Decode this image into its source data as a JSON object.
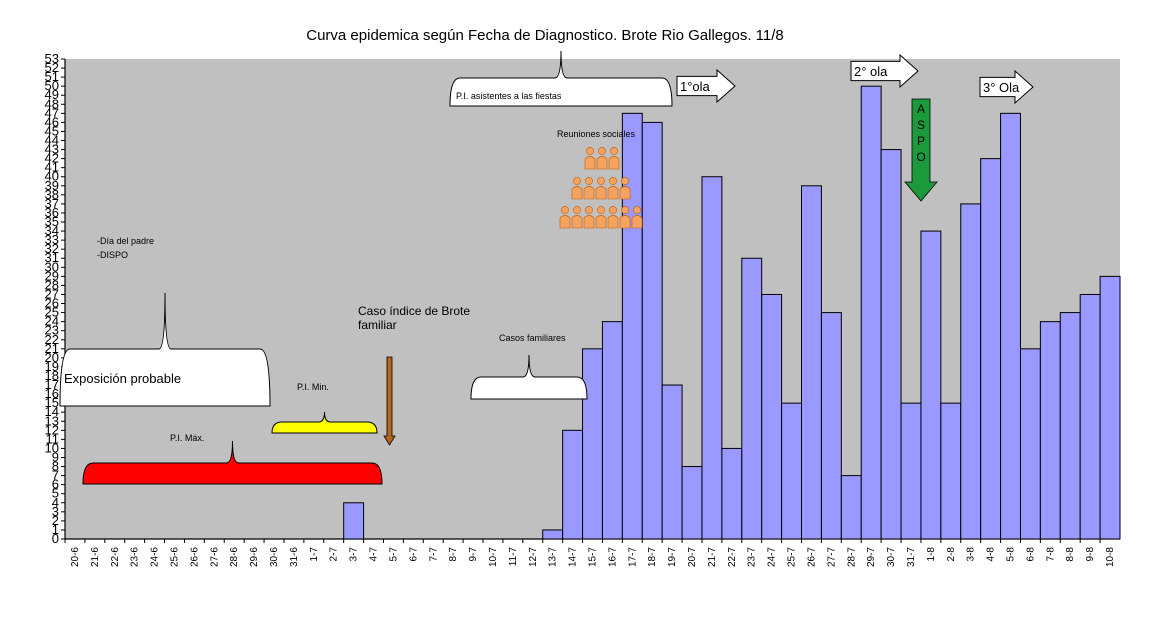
{
  "chart_data": {
    "type": "bar",
    "title": "Curva epidemica según Fecha de Diagnostico. Brote Rio Gallegos. 11/8",
    "xlabel": "",
    "ylabel": "",
    "ylim": [
      0,
      53
    ],
    "yticks": [
      0,
      1,
      2,
      3,
      4,
      5,
      6,
      7,
      8,
      9,
      10,
      11,
      12,
      13,
      14,
      15,
      16,
      17,
      18,
      19,
      20,
      21,
      22,
      23,
      24,
      25,
      26,
      27,
      28,
      29,
      30,
      31,
      32,
      33,
      34,
      35,
      36,
      37,
      38,
      39,
      40,
      41,
      42,
      43,
      44,
      45,
      46,
      47,
      48,
      49,
      50,
      51,
      52,
      53
    ],
    "grid": false,
    "categories": [
      "20-6",
      "21-6",
      "22-6",
      "23-6",
      "24-6",
      "25-6",
      "26-6",
      "27-6",
      "28-6",
      "29-6",
      "30-6",
      "31-6",
      "1-7",
      "2-7",
      "3-7",
      "4-7",
      "5-7",
      "6-7",
      "7-7",
      "8-7",
      "9-7",
      "10-7",
      "11-7",
      "12-7",
      "13-7",
      "14-7",
      "15-7",
      "16-7",
      "17-7",
      "18-7",
      "19-7",
      "20-7",
      "21-7",
      "22-7",
      "23-7",
      "24-7",
      "25-7",
      "26-7",
      "27-7",
      "28-7",
      "29-7",
      "30-7",
      "31-7",
      "1-8",
      "2-8",
      "3-8",
      "4-8",
      "5-8",
      "6-8",
      "7-8",
      "8-8",
      "9-8",
      "10-8"
    ],
    "values": [
      0,
      0,
      0,
      0,
      0,
      0,
      0,
      0,
      0,
      0,
      0,
      0,
      0,
      0,
      4,
      0,
      0,
      0,
      0,
      0,
      0,
      0,
      0,
      0,
      1,
      12,
      21,
      24,
      47,
      46,
      17,
      8,
      40,
      10,
      31,
      27,
      15,
      39,
      25,
      7,
      50,
      43,
      15,
      34,
      15,
      37,
      42,
      47,
      21,
      24,
      25,
      27,
      29
    ],
    "colors": {
      "bar": "#9999ff",
      "plot_bg": "#c0c0c0",
      "red": "#ff0000",
      "yellow": "#ffff00",
      "brown": "#b5651d",
      "green": "#1a9a3a",
      "person": "#f4a460"
    },
    "annotations": {
      "dia_padre": "-Día del padre",
      "dispo": "-DISPO",
      "exposicion": "Exposición probable",
      "pi_max": "P.I. Máx.",
      "pi_min": "P.I. Min.",
      "caso_indice_1": "Caso índice de Brote",
      "caso_indice_2": "familiar",
      "casos_familiares": "Casos familiares",
      "pi_fiestas": "P.I. asistentes a las fiestas",
      "reuniones": "Reuniones sociales",
      "ola1": "1°ola",
      "ola2": "2° ola",
      "ola3": "3° Ola",
      "aspo": [
        "A",
        "S",
        "P",
        "O"
      ]
    }
  }
}
